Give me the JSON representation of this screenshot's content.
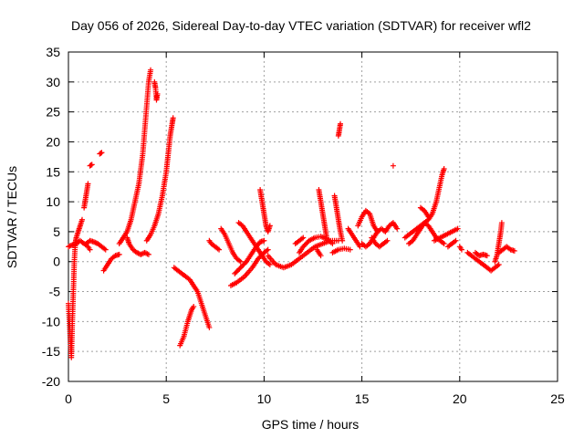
{
  "chart_data": {
    "type": "scatter",
    "title": "Day 056 of 2026, Sidereal Day-to-day VTEC variation (SDTVAR) for receiver wfl2",
    "xlabel": "GPS time / hours",
    "ylabel": "SDTVAR / TECUs",
    "xlim": [
      0,
      25
    ],
    "ylim": [
      -20,
      35
    ],
    "xticks": [
      0,
      5,
      10,
      15,
      20,
      25
    ],
    "yticks": [
      -20,
      -15,
      -10,
      -5,
      0,
      5,
      10,
      15,
      20,
      25,
      30,
      35
    ],
    "grid": true,
    "marker": "+",
    "color": "#ff0000",
    "segments": [
      [
        [
          0.0,
          2.5
        ],
        [
          0.2,
          2.8
        ],
        [
          0.4,
          3.0
        ],
        [
          0.6,
          3.5
        ],
        [
          0.8,
          3.0
        ],
        [
          1.0,
          2.5
        ],
        [
          1.1,
          2.0
        ]
      ],
      [
        [
          0.0,
          -7
        ],
        [
          0.05,
          -10
        ],
        [
          0.1,
          -13
        ],
        [
          0.15,
          -16
        ],
        [
          0.2,
          -10
        ],
        [
          0.25,
          -5
        ],
        [
          0.3,
          0
        ],
        [
          0.35,
          3
        ],
        [
          0.4,
          4
        ],
        [
          0.5,
          5
        ],
        [
          0.6,
          6
        ],
        [
          0.7,
          7
        ]
      ],
      [
        [
          0.8,
          9
        ],
        [
          0.9,
          11
        ],
        [
          1.0,
          13
        ]
      ],
      [
        [
          1.1,
          16
        ],
        [
          1.2,
          16.2
        ]
      ],
      [
        [
          1.6,
          18
        ],
        [
          1.7,
          18.2
        ]
      ],
      [
        [
          0.9,
          3
        ],
        [
          1.1,
          3.5
        ],
        [
          1.3,
          3.3
        ],
        [
          1.5,
          3.0
        ],
        [
          1.7,
          2.5
        ],
        [
          1.9,
          2.0
        ]
      ],
      [
        [
          1.8,
          -1.5
        ],
        [
          2.0,
          -0.5
        ],
        [
          2.2,
          0.5
        ],
        [
          2.4,
          1
        ],
        [
          2.6,
          1.2
        ]
      ],
      [
        [
          2.6,
          3
        ],
        [
          2.8,
          4
        ],
        [
          3.0,
          5
        ],
        [
          3.2,
          7
        ],
        [
          3.4,
          10
        ],
        [
          3.6,
          13
        ],
        [
          3.8,
          18
        ],
        [
          3.9,
          22
        ],
        [
          4.0,
          26
        ],
        [
          4.1,
          30
        ],
        [
          4.2,
          32
        ]
      ],
      [
        [
          3.0,
          4
        ],
        [
          3.1,
          3
        ],
        [
          3.3,
          2
        ],
        [
          3.5,
          1.5
        ],
        [
          3.7,
          1.2
        ],
        [
          3.9,
          1.5
        ],
        [
          4.1,
          1.2
        ]
      ],
      [
        [
          4.4,
          30
        ],
        [
          4.45,
          29
        ],
        [
          4.5,
          27
        ],
        [
          4.55,
          28
        ]
      ],
      [
        [
          4.0,
          3.5
        ],
        [
          4.2,
          4.5
        ],
        [
          4.4,
          6
        ],
        [
          4.6,
          8
        ],
        [
          4.8,
          11
        ],
        [
          5.0,
          15
        ],
        [
          5.1,
          18
        ],
        [
          5.2,
          21
        ],
        [
          5.3,
          23
        ],
        [
          5.35,
          24
        ]
      ],
      [
        [
          5.4,
          -1
        ],
        [
          5.6,
          -1.5
        ],
        [
          5.8,
          -2
        ],
        [
          6.0,
          -2.5
        ],
        [
          6.2,
          -3
        ],
        [
          6.4,
          -4
        ],
        [
          6.6,
          -5
        ],
        [
          6.8,
          -7
        ],
        [
          7.0,
          -9
        ],
        [
          7.2,
          -11
        ]
      ],
      [
        [
          5.7,
          -14
        ],
        [
          5.9,
          -12.5
        ],
        [
          6.1,
          -10
        ],
        [
          6.3,
          -8
        ],
        [
          6.4,
          -7.5
        ]
      ],
      [
        [
          7.2,
          3.5
        ],
        [
          7.3,
          3
        ],
        [
          7.5,
          2.5
        ],
        [
          7.7,
          2
        ]
      ],
      [
        [
          7.8,
          5.5
        ],
        [
          8.0,
          4.5
        ],
        [
          8.2,
          3
        ],
        [
          8.4,
          1.5
        ],
        [
          8.6,
          0.5
        ],
        [
          8.8,
          0
        ]
      ],
      [
        [
          8.3,
          -4
        ],
        [
          8.6,
          -3.5
        ],
        [
          9.0,
          -2.5
        ],
        [
          9.4,
          -1
        ],
        [
          9.7,
          0.5
        ],
        [
          10.0,
          1.5
        ],
        [
          10.2,
          2
        ]
      ],
      [
        [
          8.5,
          -2
        ],
        [
          8.8,
          -1
        ],
        [
          9.1,
          0
        ],
        [
          9.4,
          1.5
        ],
        [
          9.6,
          2.5
        ],
        [
          9.8,
          3.3
        ],
        [
          10.0,
          3.5
        ]
      ],
      [
        [
          8.7,
          6.5
        ],
        [
          8.9,
          6
        ],
        [
          9.1,
          5
        ],
        [
          9.3,
          4
        ],
        [
          9.5,
          3
        ],
        [
          9.7,
          2
        ],
        [
          9.9,
          1
        ],
        [
          10.1,
          0
        ],
        [
          10.3,
          -0.5
        ]
      ],
      [
        [
          9.8,
          12
        ],
        [
          9.9,
          10
        ],
        [
          10.0,
          8
        ],
        [
          10.1,
          6
        ],
        [
          10.2,
          5
        ],
        [
          10.3,
          6
        ]
      ],
      [
        [
          10.2,
          1
        ],
        [
          10.6,
          -0.5
        ],
        [
          11.0,
          -1
        ],
        [
          11.4,
          -0.5
        ],
        [
          11.8,
          0.5
        ],
        [
          12.2,
          1.5
        ],
        [
          12.6,
          2.5
        ],
        [
          13.0,
          3
        ],
        [
          13.4,
          3.5
        ],
        [
          13.8,
          3.5
        ]
      ],
      [
        [
          11.8,
          1.5
        ],
        [
          12.0,
          2.5
        ],
        [
          12.3,
          3.5
        ],
        [
          12.6,
          4
        ],
        [
          12.9,
          4.2
        ],
        [
          13.2,
          3.8
        ],
        [
          13.5,
          3
        ]
      ],
      [
        [
          11.6,
          3
        ],
        [
          11.8,
          3.5
        ],
        [
          12.0,
          4
        ]
      ],
      [
        [
          12.8,
          12
        ],
        [
          12.9,
          10
        ],
        [
          13.0,
          8
        ],
        [
          13.1,
          6
        ],
        [
          13.2,
          4
        ]
      ],
      [
        [
          12.7,
          2
        ],
        [
          12.9,
          1
        ]
      ],
      [
        [
          13.5,
          1.5
        ],
        [
          13.8,
          2.0
        ],
        [
          14.1,
          2.2
        ],
        [
          14.4,
          2
        ]
      ],
      [
        [
          13.6,
          11
        ],
        [
          13.7,
          9
        ],
        [
          13.8,
          7
        ],
        [
          13.9,
          5
        ],
        [
          14.0,
          3.5
        ]
      ],
      [
        [
          13.8,
          21
        ],
        [
          13.85,
          22
        ],
        [
          13.9,
          23
        ]
      ],
      [
        [
          14.3,
          5.5
        ],
        [
          14.5,
          4.5
        ],
        [
          14.7,
          3.5
        ],
        [
          14.9,
          2.5
        ]
      ],
      [
        [
          14.8,
          6
        ],
        [
          15.0,
          7.5
        ],
        [
          15.2,
          8.5
        ],
        [
          15.4,
          8
        ],
        [
          15.6,
          6
        ],
        [
          15.8,
          5
        ]
      ],
      [
        [
          15.0,
          3
        ],
        [
          15.2,
          2.5
        ],
        [
          15.4,
          3
        ],
        [
          15.6,
          4
        ],
        [
          15.8,
          5
        ],
        [
          16.0,
          5.5
        ],
        [
          16.2,
          5
        ],
        [
          16.4,
          6
        ],
        [
          16.6,
          6.5
        ],
        [
          16.8,
          5.5
        ]
      ],
      [
        [
          15.5,
          4
        ],
        [
          15.7,
          3
        ],
        [
          15.9,
          2.5
        ],
        [
          16.1,
          3
        ],
        [
          16.3,
          3.5
        ]
      ],
      [
        [
          16.6,
          16
        ]
      ],
      [
        [
          17.2,
          4
        ],
        [
          17.4,
          4.5
        ],
        [
          17.6,
          5
        ],
        [
          17.8,
          5.5
        ],
        [
          18.0,
          6
        ],
        [
          18.2,
          6.5
        ],
        [
          18.4,
          7
        ],
        [
          18.6,
          8
        ],
        [
          18.8,
          10
        ],
        [
          19.0,
          13
        ],
        [
          19.1,
          14.5
        ],
        [
          19.2,
          15.5
        ]
      ],
      [
        [
          17.4,
          3
        ],
        [
          17.6,
          3.5
        ],
        [
          17.8,
          4.5
        ],
        [
          18.0,
          5.5
        ],
        [
          18.2,
          6.5
        ],
        [
          18.4,
          6
        ],
        [
          18.6,
          5
        ],
        [
          18.8,
          4
        ],
        [
          19.0,
          3.5
        ],
        [
          19.2,
          3
        ]
      ],
      [
        [
          18.0,
          9
        ],
        [
          18.2,
          8.5
        ],
        [
          18.4,
          7.5
        ]
      ],
      [
        [
          18.7,
          3.5
        ],
        [
          19.0,
          4
        ],
        [
          19.3,
          4.5
        ],
        [
          19.6,
          5
        ],
        [
          19.9,
          5.5
        ]
      ],
      [
        [
          19.4,
          2.5
        ],
        [
          19.6,
          3
        ],
        [
          19.8,
          3.5
        ]
      ],
      [
        [
          20.0,
          2.5
        ],
        [
          20.1,
          2
        ]
      ],
      [
        [
          20.4,
          1.5
        ],
        [
          20.6,
          1
        ],
        [
          20.8,
          0.5
        ],
        [
          21.0,
          0
        ],
        [
          21.2,
          -0.5
        ],
        [
          21.4,
          -1
        ],
        [
          21.6,
          -1.5
        ],
        [
          21.8,
          -1
        ],
        [
          22.0,
          -0.5
        ]
      ],
      [
        [
          20.8,
          1.5
        ],
        [
          21.0,
          1
        ],
        [
          21.2,
          1.2
        ],
        [
          21.4,
          1
        ]
      ],
      [
        [
          21.8,
          0
        ],
        [
          21.9,
          1
        ],
        [
          22.0,
          3
        ],
        [
          22.1,
          5
        ],
        [
          22.15,
          6.5
        ]
      ],
      [
        [
          22.0,
          1.5
        ],
        [
          22.2,
          2
        ],
        [
          22.4,
          2.5
        ],
        [
          22.6,
          2
        ],
        [
          22.8,
          1.8
        ]
      ]
    ]
  }
}
